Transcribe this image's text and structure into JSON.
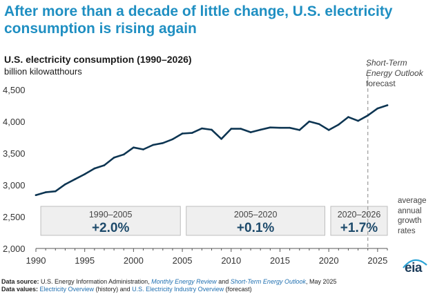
{
  "headline": {
    "line1": "After more than a decade of little change, U.S. electricity",
    "line2": "consumption is rising again"
  },
  "chart_data": {
    "type": "line",
    "title": "U.S. electricity consumption (1990–2026)",
    "subtitle": "billion kilowatthours",
    "xlabel": "",
    "ylabel": "",
    "xlim": [
      1990,
      2026
    ],
    "ylim": [
      2000,
      4500
    ],
    "x_ticks": [
      1990,
      1995,
      2000,
      2005,
      2010,
      2015,
      2020,
      2025
    ],
    "y_ticks": [
      {
        "value": 2000,
        "label": "2,000"
      },
      {
        "value": 2500,
        "label": "2,500"
      },
      {
        "value": 3000,
        "label": "3,000"
      },
      {
        "value": 3500,
        "label": "3,500"
      },
      {
        "value": 4000,
        "label": "4,000"
      },
      {
        "value": 4500,
        "label": "4,500"
      }
    ],
    "grid": false,
    "line_color": "#0d3552",
    "series": [
      {
        "x": [
          1990,
          1991,
          1992,
          1993,
          1994,
          1995,
          1996,
          1997,
          1998,
          1999,
          2000,
          2001,
          2002,
          2003,
          2004,
          2005,
          2006,
          2007,
          2008,
          2009,
          2010,
          2011,
          2012,
          2013,
          2014,
          2015,
          2016,
          2017,
          2018,
          2019,
          2020,
          2021,
          2022,
          2023,
          2024,
          2025,
          2026
        ],
        "values": [
          2840,
          2885,
          2900,
          3010,
          3090,
          3170,
          3260,
          3310,
          3430,
          3480,
          3590,
          3560,
          3630,
          3660,
          3720,
          3810,
          3820,
          3890,
          3870,
          3725,
          3885,
          3885,
          3830,
          3870,
          3905,
          3900,
          3900,
          3865,
          4000,
          3960,
          3865,
          3950,
          4070,
          4010,
          4095,
          4205,
          4255
        ]
      }
    ],
    "forecast_start": 2024,
    "forecast_label": {
      "italic": "Short-Term Energy Outlook",
      "plain": "forecast"
    },
    "growth_boxes": [
      {
        "period": "1990–2005",
        "rate": "+2.0%",
        "x_from": 1990.5,
        "x_to": 2004.8
      },
      {
        "period": "2005–2020",
        "rate": "+0.1%",
        "x_from": 2005.4,
        "x_to": 2019.6
      },
      {
        "period": "2020–2026",
        "rate": "+1.7%",
        "x_from": 2020.2,
        "x_to": 2026.0
      }
    ],
    "growth_label": "average annual growth rates"
  },
  "logo": {
    "text": "eia"
  },
  "notes": {
    "source_label": "Data source:",
    "source_text1": "U.S. Energy Information Administration,",
    "source_link1": "Monthly Energy Review",
    "source_and": "and",
    "source_link2": "Short-Term Energy Outlook",
    "source_text2": ", May 2025",
    "values_label": "Data values:",
    "values_link1": "Electricity Overview",
    "values_text1": "(history) and",
    "values_link2": "U.S. Electricity Industry Overview",
    "values_text2": "(forecast)"
  }
}
